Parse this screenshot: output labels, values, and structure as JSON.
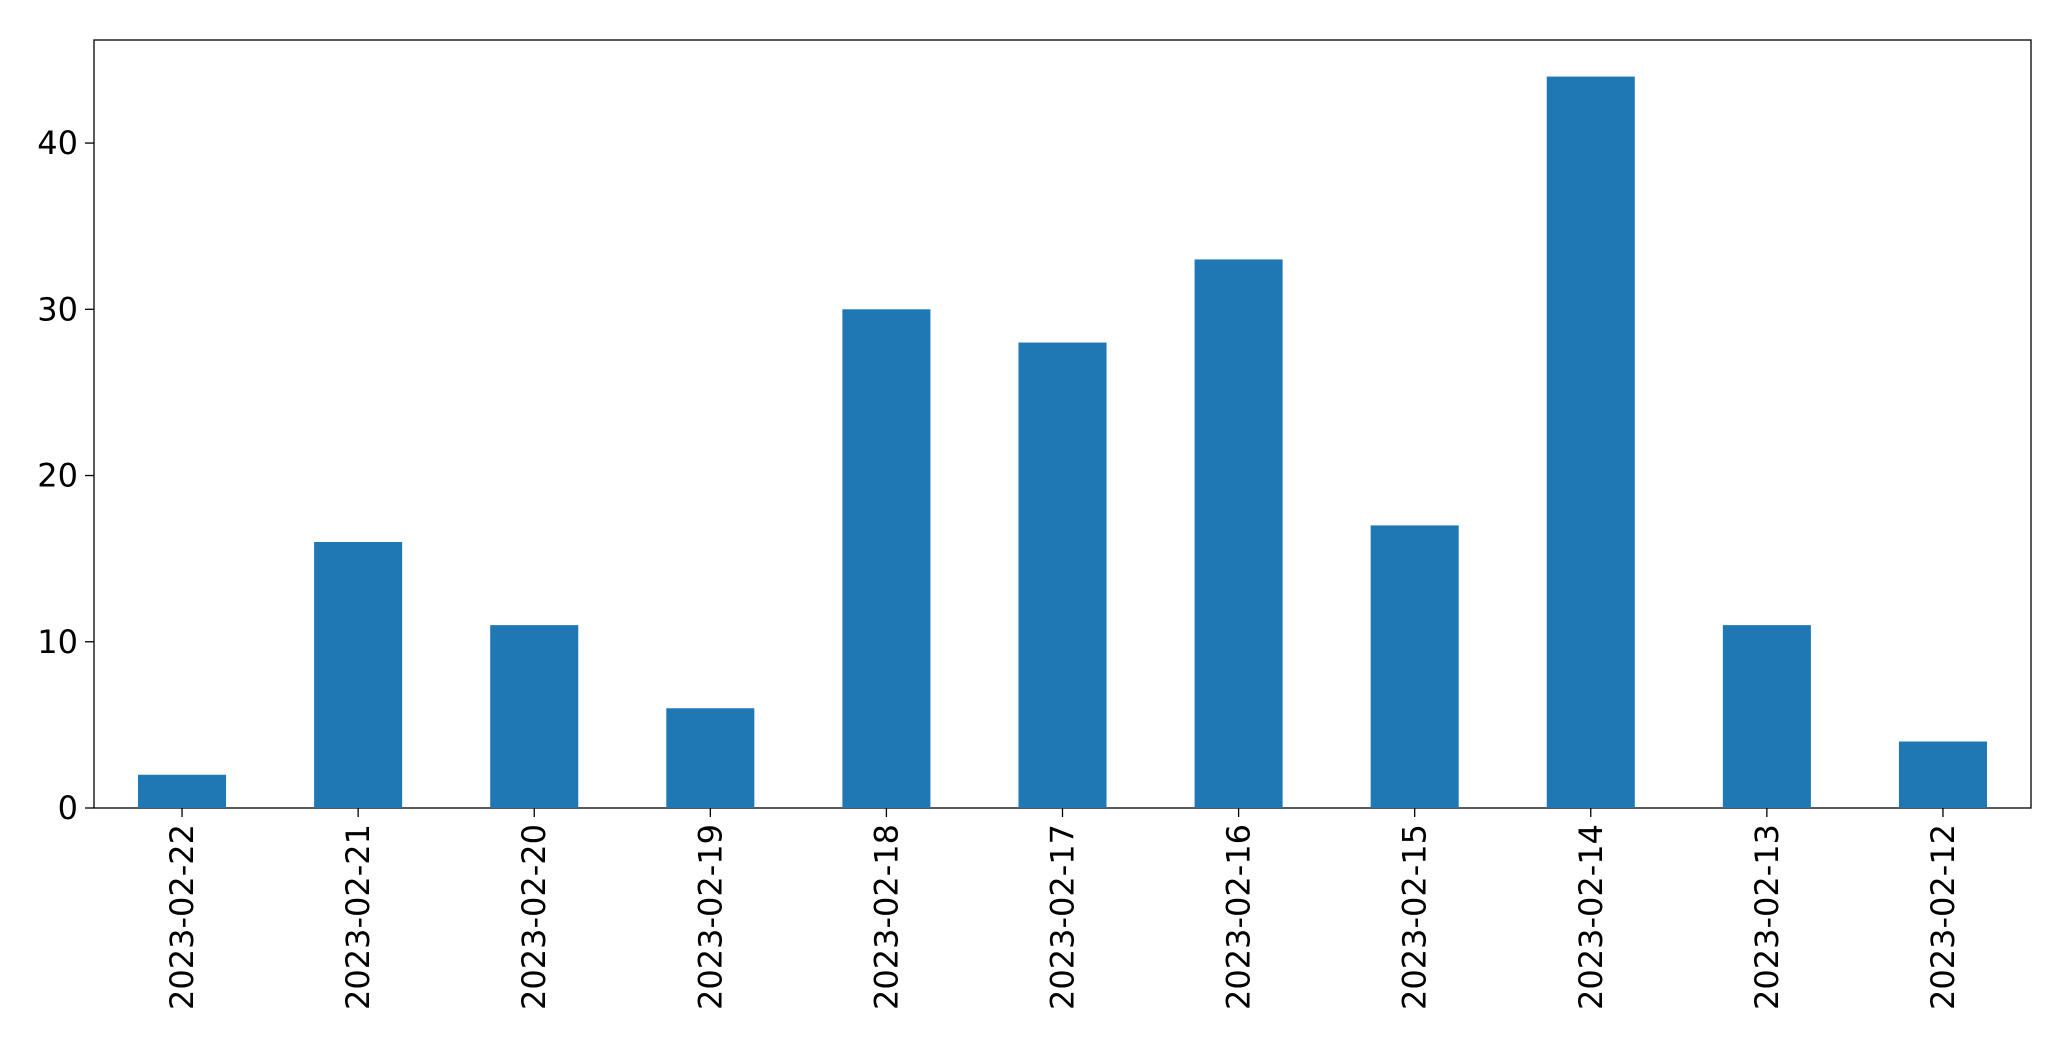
{
  "chart_data": {
    "type": "bar",
    "categories": [
      "2023-02-22",
      "2023-02-21",
      "2023-02-20",
      "2023-02-19",
      "2023-02-18",
      "2023-02-17",
      "2023-02-16",
      "2023-02-15",
      "2023-02-14",
      "2023-02-13",
      "2023-02-12"
    ],
    "values": [
      2,
      16,
      11,
      6,
      30,
      28,
      33,
      17,
      44,
      11,
      4
    ],
    "color": "#1f77b4",
    "ylim": [
      0,
      46.2
    ],
    "yticks": [
      0,
      10,
      20,
      30,
      40
    ],
    "grid": false
  }
}
